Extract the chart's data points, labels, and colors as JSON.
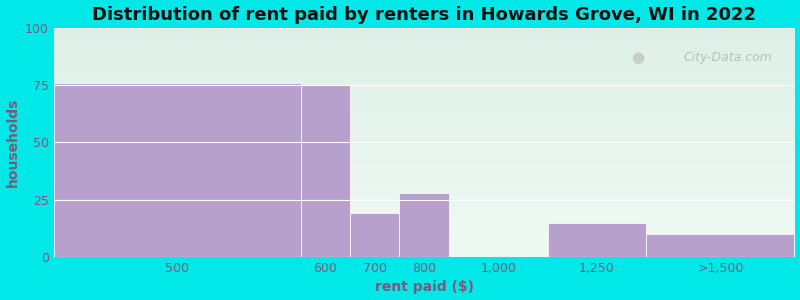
{
  "title": "Distribution of rent paid by renters in Howards Grove, WI in 2022",
  "xlabel": "rent paid ($)",
  "ylabel": "households",
  "bar_color": "#b8a0cc",
  "ylim": [
    0,
    100
  ],
  "yticks": [
    0,
    25,
    50,
    75,
    100
  ],
  "bg_top": "#ddf0e8",
  "bg_bottom": "#f0faf4",
  "outer_bg": "#00e8e8",
  "title_fontsize": 13,
  "axis_label_fontsize": 10,
  "tick_fontsize": 9,
  "watermark_text": "City-Data.com",
  "ylabel_color": "#7a5a7a",
  "xlabel_color": "#7a5a7a",
  "tick_color": "#7a5a7a",
  "title_color": "#111111",
  "grid_color": "#e0e0e0",
  "bar_positions": [
    1.25,
    2.75,
    3.25,
    3.75,
    5.5,
    6.75
  ],
  "bar_widths": [
    2.5,
    0.5,
    0.5,
    0.5,
    1.0,
    1.5
  ],
  "bar_values": [
    76,
    75,
    19,
    28,
    15,
    10
  ],
  "xlim": [
    0.0,
    7.5
  ],
  "xtick_positions": [
    1.25,
    2.75,
    3.25,
    3.75,
    4.5,
    5.5,
    6.75
  ],
  "xtick_labels": [
    "500",
    "600",
    "700",
    "800",
    "1,000",
    "1,250",
    ">1,500"
  ]
}
